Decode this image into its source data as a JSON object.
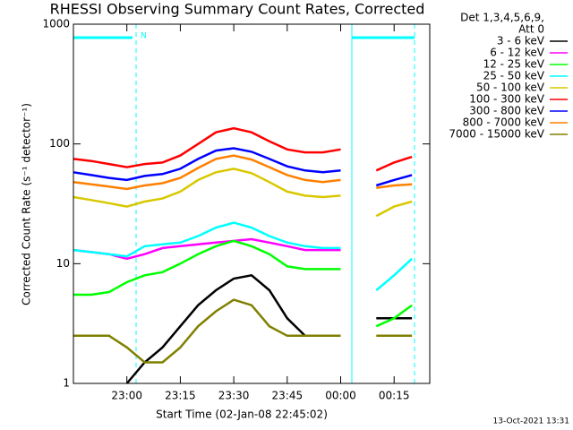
{
  "chart_data": {
    "type": "line",
    "title": "RHESSI Observing Summary Count Rates, Corrected",
    "x_label": "Start Time (02-Jan-08 22:45:02)",
    "y_label": "Corrected Count Rate (s⁻¹ detector⁻¹)",
    "legend_header": [
      "Det 1,3,4,5,6,9,",
      "Att 0"
    ],
    "legend_position": "upper right",
    "annotation": "N",
    "footer": "13-Oct-2021 13:31",
    "log_y": true,
    "x": [
      "22:45",
      "22:50",
      "22:55",
      "23:00",
      "23:05",
      "23:10",
      "23:15",
      "23:20",
      "23:25",
      "23:30",
      "23:35",
      "23:40",
      "23:45",
      "23:50",
      "23:55",
      "00:00",
      "00:05",
      "00:10",
      "00:15",
      "00:20",
      "00:25"
    ],
    "xlim": [
      "22:45",
      "00:25"
    ],
    "xticks": [
      "23:00",
      "23:15",
      "23:30",
      "23:45",
      "00:00",
      "00:15"
    ],
    "ylim": [
      1,
      1000
    ],
    "yticks": [
      1,
      10,
      100,
      1000
    ],
    "series": [
      {
        "name": "3 - 6 keV",
        "color": "#000000",
        "values": [
          null,
          null,
          null,
          1,
          1.5,
          2,
          3,
          4.5,
          6,
          7.5,
          8,
          6,
          3.5,
          2.5,
          2.5,
          2.5,
          null,
          3.5,
          3.5,
          3.5,
          null
        ]
      },
      {
        "name": "6 - 12 keV",
        "color": "#ff00ff",
        "values": [
          13,
          12.5,
          12,
          11,
          12,
          13.5,
          14,
          14.5,
          15,
          15.5,
          16,
          15,
          14,
          13,
          13,
          13,
          null,
          null,
          null,
          null,
          null
        ]
      },
      {
        "name": "12 - 25 keV",
        "color": "#00ff00",
        "values": [
          5.5,
          5.5,
          5.8,
          7,
          8,
          8.5,
          10,
          12,
          14,
          15.5,
          14,
          12,
          9.5,
          9,
          9,
          9,
          null,
          3,
          3.5,
          4.5,
          null
        ]
      },
      {
        "name": "25 - 50 keV",
        "color": "#00ffff",
        "values": [
          13,
          12.5,
          12,
          11.5,
          14,
          14.5,
          15,
          17,
          20,
          22,
          20,
          17,
          15,
          14,
          13.5,
          13.5,
          null,
          6,
          8,
          11,
          null
        ]
      },
      {
        "name": "50 - 100 keV",
        "color": "#d8c800",
        "values": [
          36,
          34,
          32,
          30,
          33,
          35,
          40,
          50,
          58,
          62,
          57,
          48,
          40,
          37,
          36,
          37,
          null,
          25,
          30,
          33,
          null
        ]
      },
      {
        "name": "100 - 300 keV",
        "color": "#ff0000",
        "values": [
          75,
          72,
          68,
          64,
          68,
          70,
          80,
          100,
          125,
          135,
          125,
          105,
          90,
          85,
          85,
          90,
          null,
          60,
          70,
          78,
          null
        ]
      },
      {
        "name": "300 - 800 keV",
        "color": "#0000ff",
        "values": [
          58,
          55,
          52,
          50,
          54,
          56,
          62,
          75,
          88,
          92,
          86,
          75,
          65,
          60,
          58,
          60,
          null,
          45,
          50,
          55,
          null
        ]
      },
      {
        "name": "800 - 7000 keV",
        "color": "#ff8000",
        "values": [
          48,
          46,
          44,
          42,
          45,
          47,
          52,
          63,
          75,
          80,
          74,
          64,
          55,
          50,
          48,
          50,
          null,
          43,
          45,
          46,
          null
        ]
      },
      {
        "name": "7000 - 15000 keV",
        "color": "#808000",
        "values": [
          2.5,
          2.5,
          2.5,
          2,
          1.5,
          1.5,
          2,
          3,
          4,
          5,
          4.5,
          3,
          2.5,
          2.5,
          2.5,
          2.5,
          null,
          2.5,
          2.5,
          2.5,
          null
        ]
      }
    ]
  }
}
